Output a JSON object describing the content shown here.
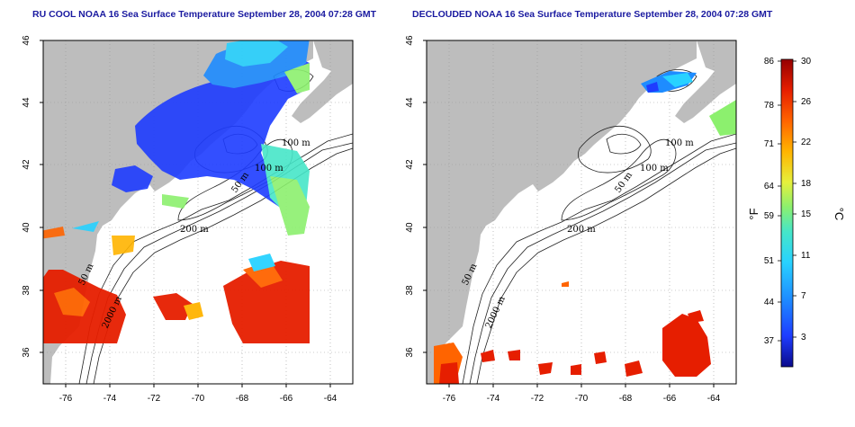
{
  "titles": {
    "left": "RU COOL NOAA 16 Sea Surface Temperature September 28, 2004 07:28 GMT",
    "right": "DECLOUDED NOAA 16 Sea Surface Temperature September 28, 2004 07:28 GMT"
  },
  "map": {
    "lon_ticks": [
      "-76",
      "-74",
      "-72",
      "-70",
      "-68",
      "-66",
      "-64"
    ],
    "lat_ticks": [
      "46",
      "44",
      "42",
      "40",
      "38",
      "36"
    ],
    "lon_range": [
      -77,
      -63
    ],
    "lat_range": [
      35,
      46
    ],
    "contour_labels": [
      "100 m",
      "100 m",
      "50 m",
      "200 m",
      "50 m",
      "2000 m"
    ],
    "land_color": "#bdbdbd",
    "grid": "dotted"
  },
  "colorbar": {
    "fahrenheit_ticks": [
      "86",
      "78",
      "71",
      "64",
      "59",
      "51",
      "44",
      "37"
    ],
    "celsius_ticks": [
      "30",
      "26",
      "22",
      "18",
      "15",
      "11",
      "7",
      "3"
    ],
    "fahrenheit_unit": "°F",
    "celsius_unit": "°C",
    "colors": [
      "#0a0a8c",
      "#1e3cff",
      "#1e8cff",
      "#28d2ff",
      "#46e6c8",
      "#8cf06e",
      "#e6f03c",
      "#ffb400",
      "#ff6400",
      "#e61e00",
      "#960000"
    ]
  }
}
